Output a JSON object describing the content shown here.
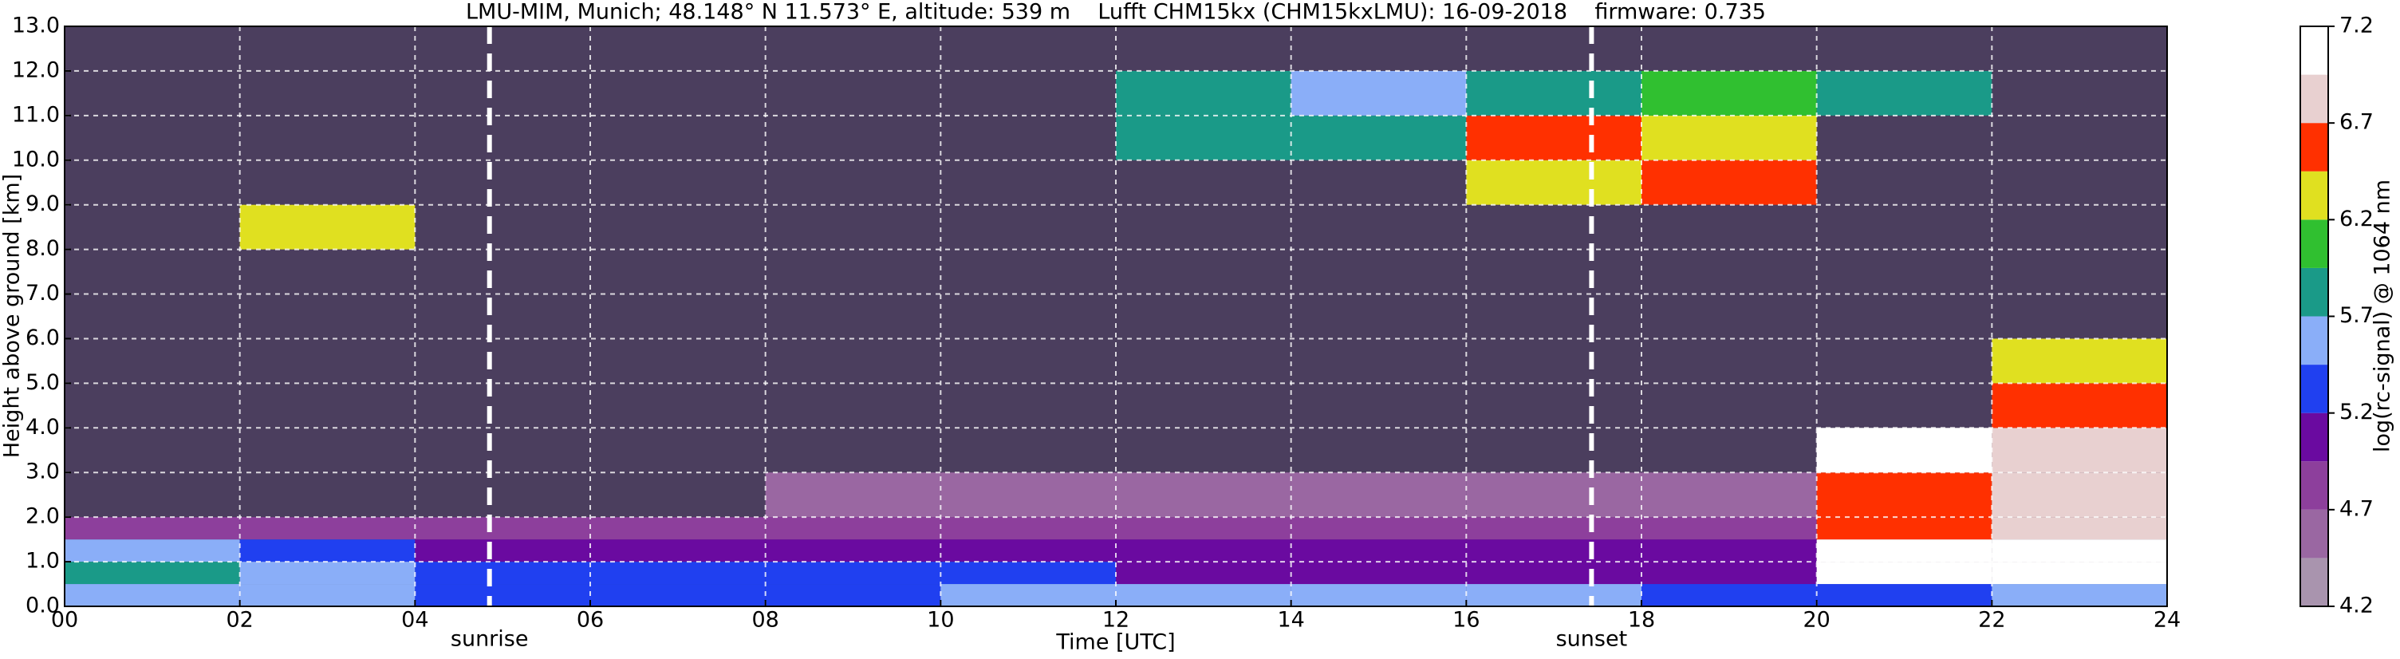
{
  "chart_data": {
    "type": "heatmap",
    "title": "LMU-MIM, Munich; 48.148° N 11.573° E, altitude: 539 m    Lufft CHM15kx (CHM15kxLMU): 16-09-2018    firmware: 0.735",
    "xlabel": "Time [UTC]",
    "ylabel": "Height above ground [km]",
    "xlim": [
      0,
      24
    ],
    "ylim": [
      0,
      13
    ],
    "xticks": [
      {
        "value": 0,
        "label": "00"
      },
      {
        "value": 2,
        "label": "02"
      },
      {
        "value": 4,
        "label": "04"
      },
      {
        "value": 6,
        "label": "06"
      },
      {
        "value": 8,
        "label": "08"
      },
      {
        "value": 10,
        "label": "10"
      },
      12,
      14,
      16,
      18,
      20,
      22,
      24
    ],
    "yticks": [
      {
        "value": 0,
        "label": "0.0"
      },
      {
        "value": 1,
        "label": "1.0"
      },
      {
        "value": 2,
        "label": "2.0"
      },
      {
        "value": 3,
        "label": "3.0"
      },
      {
        "value": 4,
        "label": "4.0"
      },
      {
        "value": 5,
        "label": "5.0"
      },
      {
        "value": 6,
        "label": "6.0"
      },
      {
        "value": 7,
        "label": "7.0"
      },
      {
        "value": 8,
        "label": "8.0"
      },
      {
        "value": 9,
        "label": "9.0"
      },
      {
        "value": 10,
        "label": "10.0"
      },
      {
        "value": 11,
        "label": "11.0"
      },
      {
        "value": 12,
        "label": "12.0"
      },
      {
        "value": 13,
        "label": "13.0"
      }
    ],
    "grid": true,
    "background": "#4b3e5e",
    "x_bins": [
      0,
      2,
      4,
      6,
      8,
      10,
      12,
      14,
      16,
      18,
      20,
      22,
      24
    ],
    "y_bins": [
      0,
      0.5,
      1,
      1.5,
      2,
      3,
      4,
      5,
      6,
      7,
      8,
      9,
      10,
      11,
      12,
      13
    ],
    "values": [
      [
        5.5,
        5.5,
        5.4,
        5.4,
        5.3,
        5.5,
        5.5,
        5.5,
        5.5,
        5.4,
        5.3,
        5.5
      ],
      [
        5.8,
        5.6,
        5.4,
        5.3,
        5.3,
        5.3,
        5.2,
        5.1,
        5.1,
        5.1,
        7.0,
        7.0
      ],
      [
        5.6,
        5.4,
        5.1,
        5.0,
        5.0,
        5.0,
        5.0,
        5.0,
        5.0,
        5.0,
        7.0,
        7.0
      ],
      [
        4.8,
        4.8,
        4.9,
        4.9,
        4.9,
        4.9,
        4.9,
        4.9,
        4.9,
        4.9,
        6.6,
        6.8
      ],
      [
        null,
        null,
        null,
        null,
        4.7,
        4.7,
        4.7,
        4.7,
        4.7,
        4.7,
        6.5,
        6.9
      ],
      [
        null,
        null,
        null,
        null,
        null,
        null,
        null,
        null,
        null,
        null,
        7.0,
        6.8
      ],
      [
        null,
        null,
        null,
        null,
        null,
        null,
        null,
        null,
        null,
        null,
        null,
        6.6
      ],
      [
        null,
        null,
        null,
        null,
        null,
        null,
        null,
        null,
        null,
        null,
        null,
        6.3
      ],
      [
        null,
        null,
        null,
        null,
        null,
        null,
        null,
        null,
        null,
        null,
        null,
        null
      ],
      [
        null,
        null,
        null,
        null,
        null,
        null,
        null,
        null,
        null,
        null,
        null,
        null
      ],
      [
        null,
        6.3,
        null,
        null,
        null,
        null,
        null,
        null,
        null,
        null,
        null,
        null
      ],
      [
        null,
        null,
        null,
        null,
        null,
        null,
        null,
        null,
        6.4,
        6.5,
        null,
        null
      ],
      [
        null,
        null,
        null,
        null,
        null,
        null,
        5.8,
        5.8,
        6.6,
        6.4,
        null,
        null
      ],
      [
        null,
        null,
        null,
        null,
        null,
        null,
        5.9,
        5.7,
        5.8,
        6.2,
        5.9,
        null
      ],
      [
        null,
        null,
        null,
        null,
        null,
        null,
        null,
        null,
        null,
        null,
        null,
        null
      ]
    ],
    "annotations": [
      {
        "x": 4.85,
        "label": "sunrise"
      },
      {
        "x": 17.43,
        "label": "sunset"
      }
    ],
    "colorbar": {
      "label": "log(rc-signal) @ 1064 nm",
      "ylim": [
        4.2,
        7.2
      ],
      "yticks": [
        4.2,
        4.7,
        5.2,
        5.7,
        6.2,
        6.7,
        7.2
      ],
      "bounds": [
        4.2,
        4.45,
        4.7,
        4.95,
        5.2,
        5.45,
        5.7,
        5.95,
        6.2,
        6.45,
        6.7,
        6.95,
        7.2
      ],
      "colors": [
        "#a994ae",
        "#9a67a2",
        "#8d3f9c",
        "#6a0aa0",
        "#2040f0",
        "#8aaef8",
        "#1a9a88",
        "#30c030",
        "#e0e020",
        "#ff3000",
        "#e8d0d0",
        "#ffffff"
      ]
    }
  }
}
